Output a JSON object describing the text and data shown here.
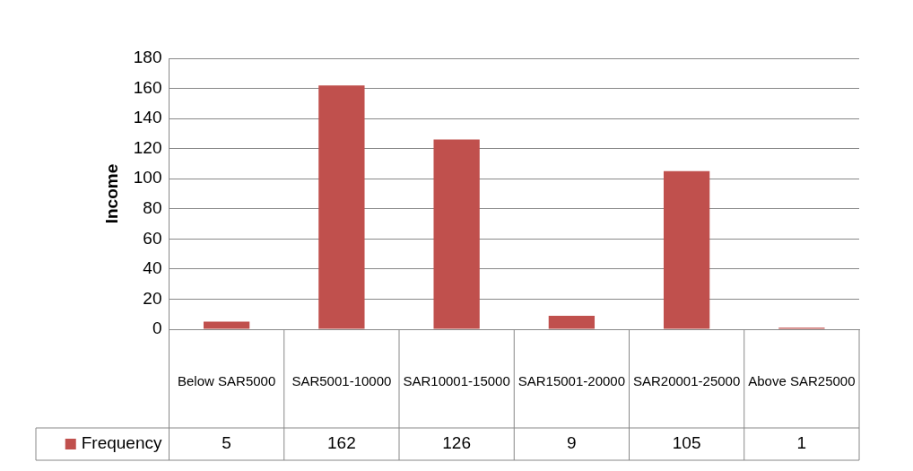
{
  "chart_data": {
    "type": "bar",
    "ylabel": "Income",
    "categories": [
      "Below SAR5000",
      "SAR5001-10000",
      "SAR10001-15000",
      "SAR15001-20000",
      "SAR20001-25000",
      "Above SAR25000"
    ],
    "series": [
      {
        "name": "Frequency",
        "color": "#c0504d",
        "values": [
          5,
          162,
          126,
          9,
          105,
          1
        ]
      }
    ],
    "ylim": [
      0,
      180
    ],
    "yticks": [
      0,
      20,
      40,
      60,
      80,
      100,
      120,
      140,
      160,
      180
    ],
    "grid": "y",
    "legend": "bottom",
    "data_labels": true
  }
}
